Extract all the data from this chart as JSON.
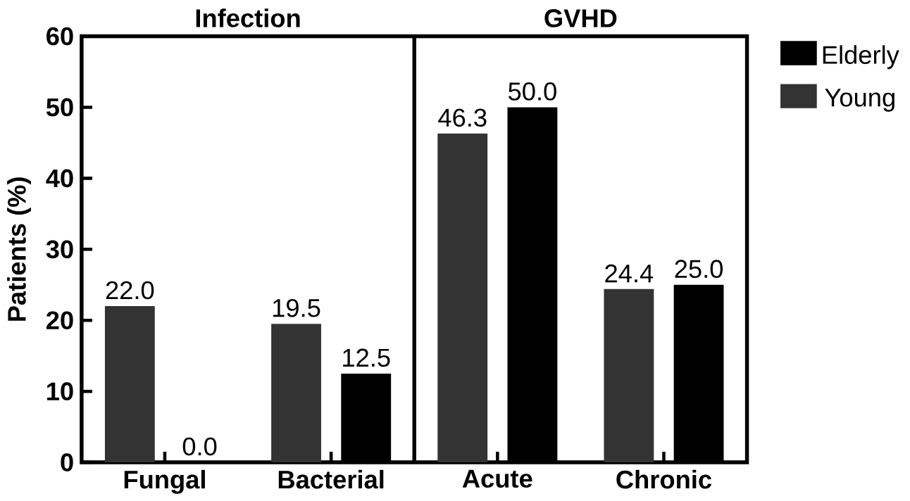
{
  "chart_data": {
    "type": "bar",
    "ylabel": "Patients (%)",
    "categories": [
      "Fungal",
      "Bacterial",
      "Acute",
      "Chronic"
    ],
    "series": [
      {
        "name": "Young",
        "color": "#333333",
        "values": [
          22.0,
          19.5,
          46.3,
          24.4
        ],
        "value_labels": [
          "22.0",
          "19.5",
          "46.3",
          "24.4"
        ]
      },
      {
        "name": "Elderly",
        "color": "#000000",
        "values": [
          0.0,
          12.5,
          50.0,
          25.0
        ],
        "value_labels": [
          "0.0",
          "12.5",
          "50.0",
          "25.0"
        ]
      }
    ],
    "ylim": [
      0,
      60
    ],
    "yticks": [
      0,
      10,
      20,
      30,
      40,
      50,
      60
    ],
    "annotations": [
      "Infection",
      "GVHD"
    ],
    "legend": "right",
    "grid": false
  }
}
